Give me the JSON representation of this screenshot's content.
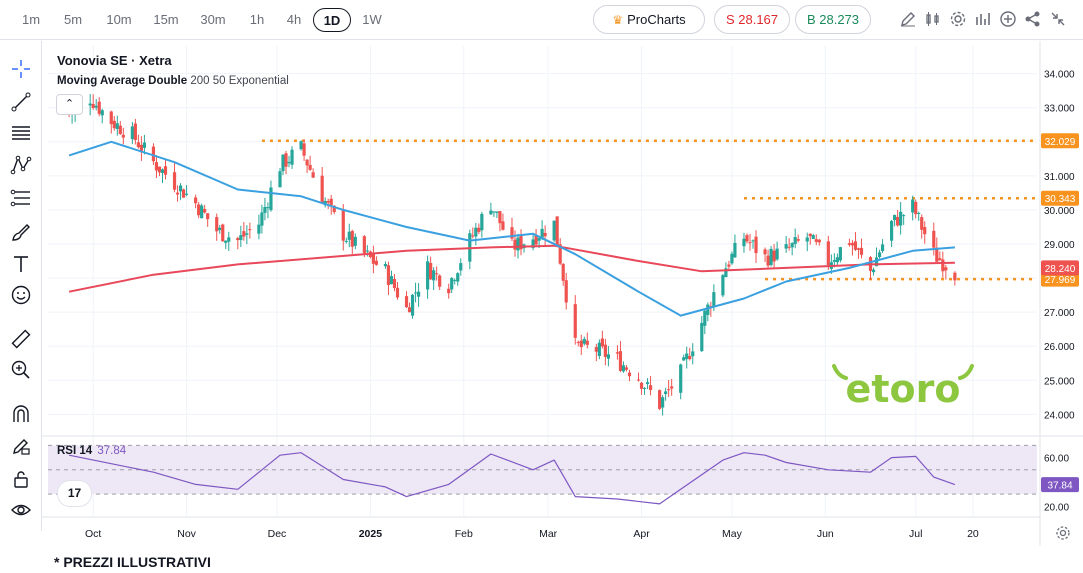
{
  "toolbar": {
    "timeframes": [
      "1m",
      "5m",
      "10m",
      "15m",
      "30m",
      "1h",
      "4h",
      "1D",
      "1W"
    ],
    "active_timeframe": "1D",
    "prochart_label": "ProCharts",
    "sell_label": "S 28.167",
    "buy_label": "B 28.273",
    "right_icons": [
      "draw-pencil-icon",
      "candle-style-icon",
      "settings-gear-icon",
      "indicators-icon",
      "add-icon",
      "share-icon",
      "collapse-arrows-icon"
    ]
  },
  "left_tools": [
    "crosshair-icon",
    "trend-line-icon",
    "horizontal-lines-icon",
    "pattern-icon",
    "fib-icon",
    "brush-icon",
    "text-icon",
    "emoji-icon",
    "ruler-icon",
    "zoom-in-icon",
    "magnet-icon",
    "lock-pencil-icon",
    "lock-icon",
    "eye-icon"
  ],
  "legend": {
    "title": "Vonovia SE · Xetra",
    "ma_name": "Moving Average Double",
    "ma_params": "200 50 Exponential",
    "collapse_symbol": "⌃"
  },
  "rsi_legend": {
    "label": "RSI 14",
    "value": "37.84"
  },
  "tv_logo_text": "17",
  "watermark": "etoro",
  "footer_note": "* PREZZI ILLUSTRATIVI",
  "colors": {
    "up": "#26a69a",
    "down": "#ef5350",
    "ma_fast": "#3aa0e0",
    "ma_slow": "#e8485a",
    "level_line": "#f7931e",
    "rsi_line": "#7e57c2",
    "rsi_band": "#ede7f6",
    "etoro_green": "#8dc63f"
  },
  "chart_data": [
    {
      "type": "candlestick",
      "title": "Vonovia SE · Xetra",
      "ylim": [
        23.6,
        34.4
      ],
      "y_ticks": [
        "34.000",
        "33.000",
        "32.000",
        "31.000",
        "30.000",
        "29.000",
        "28.000",
        "27.000",
        "26.000",
        "25.000",
        "24.000"
      ],
      "x_ticks": [
        "Oct",
        "Nov",
        "Dec",
        "2025",
        "Feb",
        "Mar",
        "Apr",
        "May",
        "Jun",
        "Jul",
        "20"
      ],
      "close_path": [
        [
          "2024-09-23",
          32.8
        ],
        [
          "2024-09-30",
          33.3
        ],
        [
          "2024-10-07",
          32.6
        ],
        [
          "2024-10-14",
          32.2
        ],
        [
          "2024-10-21",
          31.4
        ],
        [
          "2024-10-28",
          30.8
        ],
        [
          "2024-11-04",
          30.2
        ],
        [
          "2024-11-11",
          29.4
        ],
        [
          "2024-11-18",
          29.1
        ],
        [
          "2024-11-25",
          29.6
        ],
        [
          "2024-12-02",
          31.3
        ],
        [
          "2024-12-09",
          31.8
        ],
        [
          "2024-12-16",
          30.4
        ],
        [
          "2024-12-23",
          29.3
        ],
        [
          "2024-12-30",
          28.7
        ],
        [
          "2025-01-06",
          28.2
        ],
        [
          "2025-01-13",
          27.1
        ],
        [
          "2025-01-20",
          28.3
        ],
        [
          "2025-01-27",
          27.8
        ],
        [
          "2025-02-03",
          29.1
        ],
        [
          "2025-02-10",
          30.2
        ],
        [
          "2025-02-17",
          28.9
        ],
        [
          "2025-02-24",
          29.2
        ],
        [
          "2025-03-03",
          29.6
        ],
        [
          "2025-03-10",
          26.0
        ],
        [
          "2025-03-17",
          25.9
        ],
        [
          "2025-03-24",
          25.6
        ],
        [
          "2025-03-31",
          25.1
        ],
        [
          "2025-04-07",
          24.3
        ],
        [
          "2025-04-14",
          25.2
        ],
        [
          "2025-04-21",
          26.7
        ],
        [
          "2025-04-28",
          28.2
        ],
        [
          "2025-05-05",
          29.2
        ],
        [
          "2025-05-12",
          28.6
        ],
        [
          "2025-05-19",
          28.8
        ],
        [
          "2025-05-26",
          29.2
        ],
        [
          "2025-06-02",
          28.5
        ],
        [
          "2025-06-09",
          29.1
        ],
        [
          "2025-06-16",
          28.2
        ],
        [
          "2025-06-23",
          29.6
        ],
        [
          "2025-06-30",
          30.1
        ],
        [
          "2025-07-07",
          28.7
        ],
        [
          "2025-07-14",
          28.17
        ]
      ],
      "ema_50": [
        [
          "2024-09-23",
          31.6
        ],
        [
          "2024-10-07",
          32.0
        ],
        [
          "2024-10-28",
          31.4
        ],
        [
          "2024-11-18",
          30.6
        ],
        [
          "2024-12-09",
          30.4
        ],
        [
          "2024-12-23",
          30.0
        ],
        [
          "2025-01-13",
          29.5
        ],
        [
          "2025-02-03",
          29.1
        ],
        [
          "2025-02-24",
          29.3
        ],
        [
          "2025-03-10",
          28.7
        ],
        [
          "2025-03-31",
          27.6
        ],
        [
          "2025-04-14",
          26.9
        ],
        [
          "2025-05-05",
          27.4
        ],
        [
          "2025-05-19",
          27.9
        ],
        [
          "2025-06-09",
          28.3
        ],
        [
          "2025-06-30",
          28.8
        ],
        [
          "2025-07-14",
          28.9
        ]
      ],
      "ema_200": [
        [
          "2024-09-23",
          27.6
        ],
        [
          "2024-10-21",
          28.1
        ],
        [
          "2024-11-18",
          28.4
        ],
        [
          "2024-12-16",
          28.6
        ],
        [
          "2025-01-13",
          28.8
        ],
        [
          "2025-02-10",
          28.9
        ],
        [
          "2025-03-03",
          28.95
        ],
        [
          "2025-03-31",
          28.5
        ],
        [
          "2025-04-21",
          28.2
        ],
        [
          "2025-05-19",
          28.3
        ],
        [
          "2025-06-16",
          28.4
        ],
        [
          "2025-07-14",
          28.45
        ]
      ],
      "levels": [
        {
          "label": "32.029",
          "value": 32.029,
          "from": "2024-11-26"
        },
        {
          "label": "30.343",
          "value": 30.343,
          "from": "2025-05-05"
        },
        {
          "label": "27.969",
          "value": 27.969,
          "from": "2025-05-12"
        }
      ],
      "last_price": {
        "label": "28.240",
        "value": 28.24
      }
    },
    {
      "type": "line",
      "title": "RSI 14",
      "ylim": [
        17,
        72
      ],
      "y_ticks": [
        "60.00",
        "20.00"
      ],
      "bands": [
        30,
        70
      ],
      "midline": 50,
      "values": [
        [
          "2024-09-23",
          62
        ],
        [
          "2024-10-07",
          55
        ],
        [
          "2024-10-21",
          48
        ],
        [
          "2024-11-04",
          38
        ],
        [
          "2024-11-18",
          34
        ],
        [
          "2024-12-02",
          62
        ],
        [
          "2024-12-09",
          64
        ],
        [
          "2024-12-23",
          42
        ],
        [
          "2025-01-06",
          36
        ],
        [
          "2025-01-13",
          28
        ],
        [
          "2025-01-27",
          38
        ],
        [
          "2025-02-10",
          63
        ],
        [
          "2025-02-24",
          50
        ],
        [
          "2025-03-03",
          58
        ],
        [
          "2025-03-10",
          28
        ],
        [
          "2025-03-24",
          26
        ],
        [
          "2025-04-07",
          22
        ],
        [
          "2025-04-14",
          34
        ],
        [
          "2025-04-28",
          58
        ],
        [
          "2025-05-05",
          64
        ],
        [
          "2025-05-12",
          62
        ],
        [
          "2025-05-19",
          56
        ],
        [
          "2025-06-02",
          50
        ],
        [
          "2025-06-16",
          48
        ],
        [
          "2025-06-23",
          60
        ],
        [
          "2025-07-01",
          61
        ],
        [
          "2025-07-07",
          44
        ],
        [
          "2025-07-14",
          37.84
        ]
      ],
      "last_value": {
        "label": "37.84",
        "value": 37.84
      }
    }
  ]
}
